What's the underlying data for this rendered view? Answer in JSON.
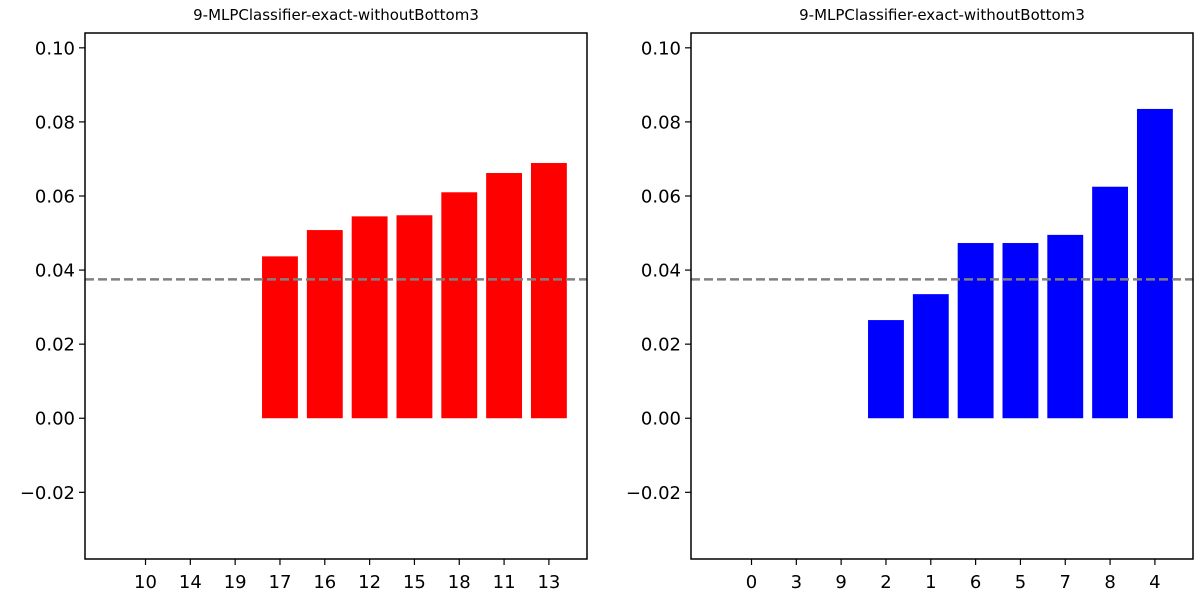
{
  "chart_data": [
    {
      "type": "bar",
      "title": "9-MLPClassifier-exact-withoutBottom3",
      "xlabel": "",
      "ylabel": "",
      "categories": [
        "10",
        "14",
        "19",
        "17",
        "16",
        "12",
        "15",
        "18",
        "11",
        "13"
      ],
      "values": [
        0,
        0,
        0,
        0.0437,
        0.0508,
        0.0545,
        0.0548,
        0.061,
        0.0662,
        0.0689
      ],
      "bar_color": "#ff0000",
      "ylim": [
        -0.038,
        0.104
      ],
      "yticks": [
        -0.02,
        0.0,
        0.02,
        0.04,
        0.06,
        0.08,
        0.1
      ],
      "ytick_labels": [
        "−0.02",
        "0.00",
        "0.02",
        "0.04",
        "0.06",
        "0.08",
        "0.10"
      ],
      "reference_line": {
        "y": 0.0375,
        "style": "dashed",
        "color": "#808080"
      },
      "grid": false,
      "legend": "none"
    },
    {
      "type": "bar",
      "title": "9-MLPClassifier-exact-withoutBottom3",
      "xlabel": "",
      "ylabel": "",
      "categories": [
        "0",
        "3",
        "9",
        "2",
        "1",
        "6",
        "5",
        "7",
        "8",
        "4"
      ],
      "values": [
        0,
        0,
        0,
        0.0265,
        0.0335,
        0.0473,
        0.0473,
        0.0495,
        0.0625,
        0.0835
      ],
      "bar_color": "#0000ff",
      "ylim": [
        -0.038,
        0.104
      ],
      "yticks": [
        -0.02,
        0.0,
        0.02,
        0.04,
        0.06,
        0.08,
        0.1
      ],
      "ytick_labels": [
        "−0.02",
        "0.00",
        "0.02",
        "0.04",
        "0.06",
        "0.08",
        "0.10"
      ],
      "reference_line": {
        "y": 0.0375,
        "style": "dashed",
        "color": "#808080"
      },
      "grid": false,
      "legend": "none"
    }
  ]
}
